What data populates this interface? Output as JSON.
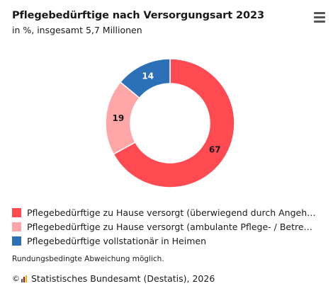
{
  "header": {
    "title": "Pflegebedürftige nach Versorgungsart 2023",
    "subtitle": "in %, insgesamt 5,7 Millionen",
    "menu_icon": "hamburger-menu-icon"
  },
  "chart_data": {
    "type": "pie",
    "variant": "donut",
    "title": "Pflegebedürftige nach Versorgungsart 2023",
    "subtitle": "in %, insgesamt 5,7 Millionen",
    "categories": [
      "Pflegebedürftige zu Hause versorgt (überwiegend durch Angehöri...",
      "Pflegebedürftige zu Hause versorgt (ambulante Pflege- / Betreuu...",
      "Pflegebedürftige vollstationär in Heimen"
    ],
    "values": [
      67,
      19,
      14
    ],
    "colors": [
      "#ff4a52",
      "#ffa6a8",
      "#2c70b8"
    ],
    "legend_position": "bottom"
  },
  "legend": {
    "items": [
      {
        "label": "Pflegebedürftige zu Hause versorgt (überwiegend durch Angehöri...",
        "color": "#ff4a52"
      },
      {
        "label": "Pflegebedürftige zu Hause versorgt (ambulante Pflege- / Betreuu...",
        "color": "#ffa6a8"
      },
      {
        "label": "Pflegebedürftige vollstationär in Heimen",
        "color": "#2c70b8"
      }
    ]
  },
  "footer": {
    "note": "Rundungsbedingte Abweichung möglich.",
    "copyright_symbol": "©",
    "source": "Statistisches Bundesamt (Destatis), 2026",
    "logo_icon": "destatis-logo-icon"
  }
}
